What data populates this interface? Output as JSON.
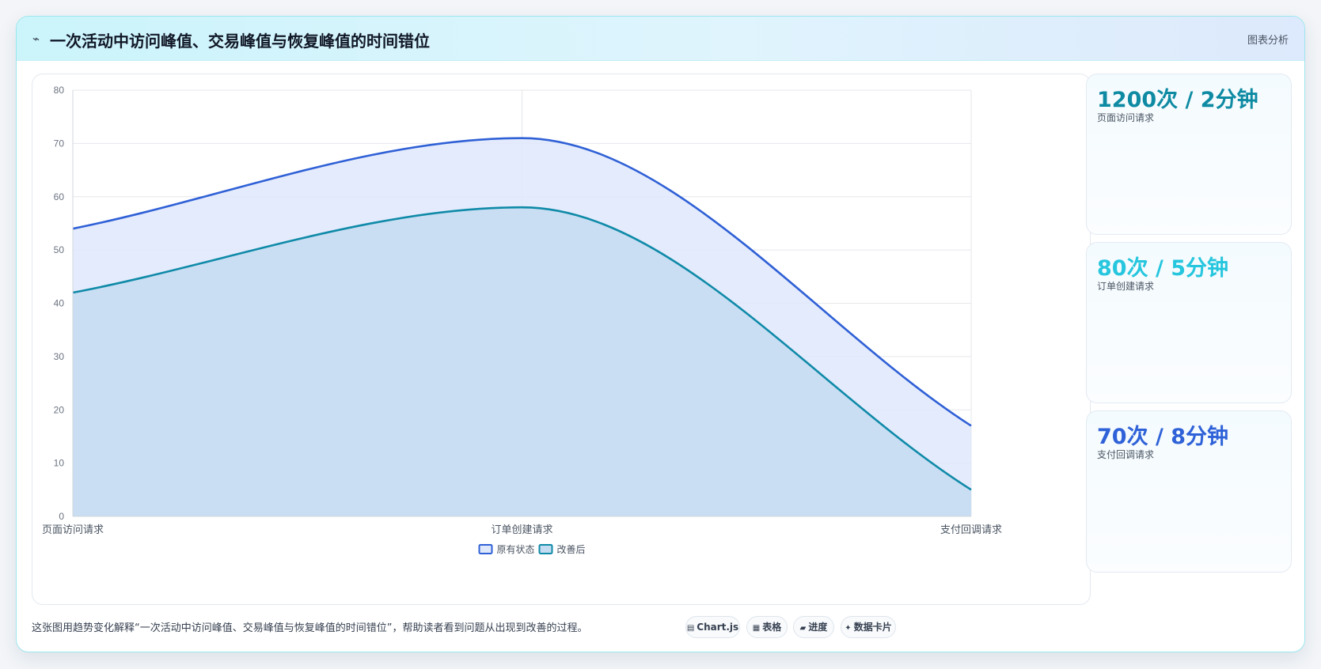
{
  "header": {
    "icon": "pulse-icon",
    "title": "一次活动中访问峰值、交易峰值与恢复峰值的时间错位",
    "link_label": "图表分析"
  },
  "chart_data": {
    "type": "area",
    "categories": [
      "页面访问请求",
      "订单创建请求",
      "支付回调请求"
    ],
    "series": [
      {
        "name": "原有状态",
        "values": [
          54,
          71,
          17
        ],
        "color": "#2f60d6",
        "fill": "#dfe8fb"
      },
      {
        "name": "改善后",
        "values": [
          42,
          58,
          5
        ],
        "color": "#0f8aa8",
        "fill": "#c4dcf1"
      }
    ],
    "ylim": [
      0,
      80
    ],
    "yticks": [
      0,
      10,
      20,
      30,
      40,
      50,
      60,
      70,
      80
    ],
    "grid": true,
    "legend_position": "bottom",
    "curve": "smooth"
  },
  "stats": [
    {
      "value": "1200次 / 2分钟",
      "label": "页面访问请求",
      "color": "#0e8aa3"
    },
    {
      "value": "80次 / 5分钟",
      "label": "订单创建请求",
      "color": "#26c6de"
    },
    {
      "value": "70次 / 8分钟",
      "label": "支付回调请求",
      "color": "#2f62d8"
    }
  ],
  "footnote": "这张图用趋势变化解释“一次活动中访问峰值、交易峰值与恢复峰值的时间错位”，帮助读者看到问题从出现到改善的过程。",
  "pills": [
    {
      "icon": "▤",
      "icon_name": "chart-icon",
      "label": "Chart.js"
    },
    {
      "icon": "▦",
      "icon_name": "table-icon",
      "label": "表格"
    },
    {
      "icon": "▰",
      "icon_name": "progress-icon",
      "label": "进度"
    },
    {
      "icon": "✦",
      "icon_name": "sparkle-icon",
      "label": "数据卡片"
    }
  ]
}
